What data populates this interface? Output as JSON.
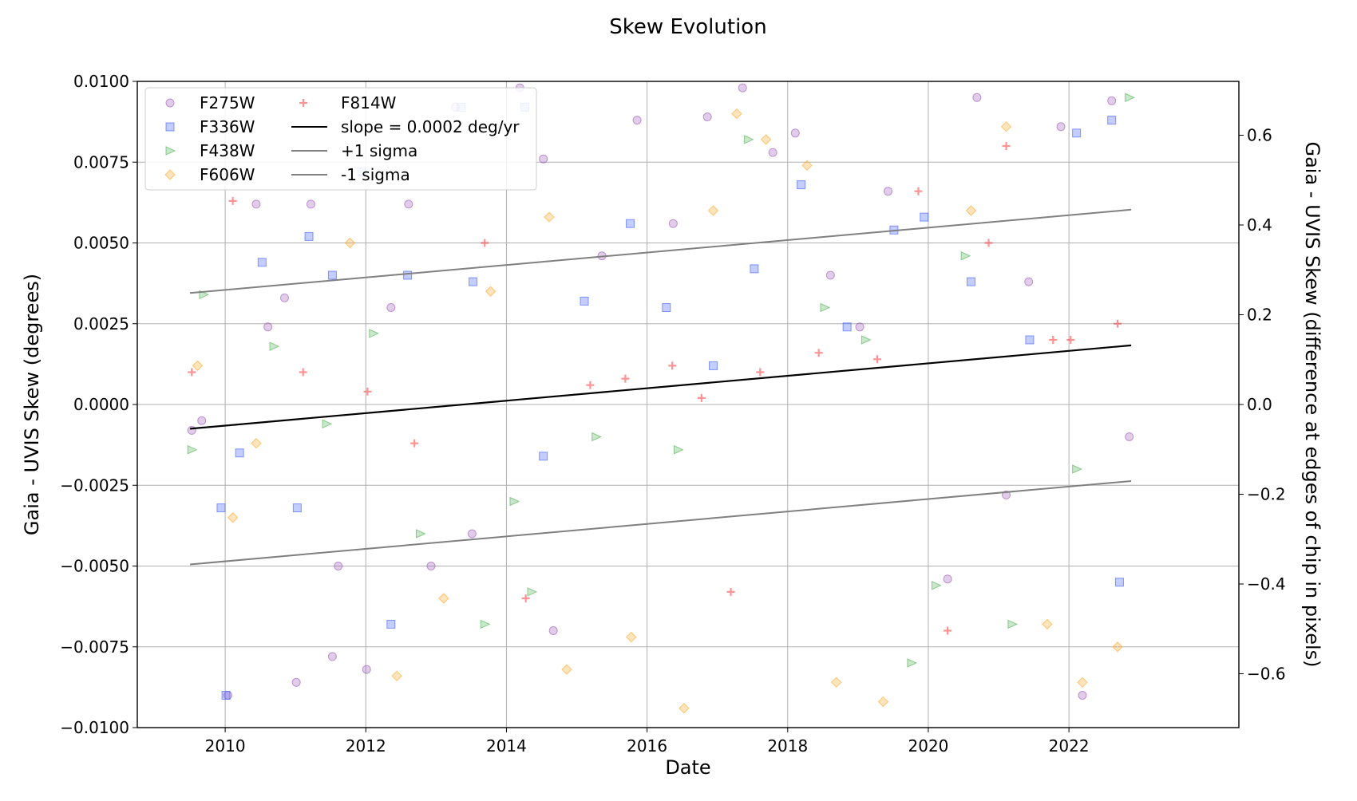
{
  "chart_data": {
    "type": "scatter",
    "title": "Skew Evolution",
    "xlabel": "Date",
    "ylabel": "Gaia - UVIS Skew (degrees)",
    "y2label": "Gaia - UVIS Skew (difference at edges of chip in pixels)",
    "xlim": [
      "2008-10-01",
      "2024-06-01"
    ],
    "ylim": [
      -0.01,
      0.01
    ],
    "y2lim": [
      -0.72,
      0.72
    ],
    "grid": true,
    "legend_location": "upper-left",
    "x_ticks": [
      "2010",
      "2012",
      "2014",
      "2016",
      "2018",
      "2020",
      "2022"
    ],
    "y_ticks": [
      "0.0100",
      "0.0075",
      "0.0050",
      "0.0025",
      "0.0000",
      "−0.0025",
      "−0.0050",
      "−0.0075",
      "−0.0100"
    ],
    "y2_ticks": [
      "0.6",
      "0.4",
      "0.2",
      "0.0",
      "−0.2",
      "−0.4",
      "−0.6"
    ],
    "series": [
      {
        "name": "F275W",
        "marker": "circle",
        "color": "#9b59b6",
        "points": [
          [
            "2009-07-10",
            -0.0008
          ],
          [
            "2009-09-01",
            -0.0005
          ],
          [
            "2010-01-15",
            -0.009
          ],
          [
            "2010-06-10",
            0.0062
          ],
          [
            "2010-08-10",
            0.0024
          ],
          [
            "2010-11-05",
            0.0033
          ],
          [
            "2011-01-05",
            -0.0086
          ],
          [
            "2011-03-20",
            0.0062
          ],
          [
            "2011-07-10",
            -0.0078
          ],
          [
            "2011-08-10",
            -0.005
          ],
          [
            "2012-01-05",
            -0.0082
          ],
          [
            "2012-05-10",
            0.003
          ],
          [
            "2012-08-10",
            0.0062
          ],
          [
            "2012-12-05",
            -0.005
          ],
          [
            "2013-04-10",
            0.0092
          ],
          [
            "2013-07-05",
            -0.004
          ],
          [
            "2014-03-10",
            0.0098
          ],
          [
            "2014-07-10",
            0.0076
          ],
          [
            "2014-09-01",
            -0.007
          ],
          [
            "2015-05-10",
            0.0046
          ],
          [
            "2015-11-10",
            0.0088
          ],
          [
            "2016-05-15",
            0.0056
          ],
          [
            "2016-11-10",
            0.0089
          ],
          [
            "2017-05-10",
            0.0098
          ],
          [
            "2017-10-15",
            0.0078
          ],
          [
            "2018-02-10",
            0.0084
          ],
          [
            "2018-08-10",
            0.004
          ],
          [
            "2019-01-10",
            0.0024
          ],
          [
            "2019-06-05",
            0.0066
          ],
          [
            "2020-04-10",
            -0.0054
          ],
          [
            "2020-09-10",
            0.0095
          ],
          [
            "2021-02-10",
            -0.0028
          ],
          [
            "2021-06-05",
            0.0038
          ],
          [
            "2021-11-20",
            0.0086
          ],
          [
            "2022-03-10",
            -0.009
          ],
          [
            "2022-08-10",
            0.0094
          ],
          [
            "2022-11-10",
            -0.001
          ]
        ]
      },
      {
        "name": "F336W",
        "marker": "square",
        "color": "#3b5bff",
        "points": [
          [
            "2009-12-10",
            -0.0032
          ],
          [
            "2010-01-05",
            -0.009
          ],
          [
            "2010-03-15",
            -0.0015
          ],
          [
            "2010-07-10",
            0.0044
          ],
          [
            "2011-01-10",
            -0.0032
          ],
          [
            "2011-03-10",
            0.0052
          ],
          [
            "2011-07-10",
            0.004
          ],
          [
            "2011-12-10",
            0.0072
          ],
          [
            "2012-05-10",
            -0.0068
          ],
          [
            "2012-08-05",
            0.004
          ],
          [
            "2013-05-10",
            0.0092
          ],
          [
            "2013-07-10",
            0.0038
          ],
          [
            "2014-04-05",
            0.0092
          ],
          [
            "2014-07-10",
            -0.0016
          ],
          [
            "2015-02-10",
            0.0032
          ],
          [
            "2015-10-05",
            0.0056
          ],
          [
            "2016-04-10",
            0.003
          ],
          [
            "2016-12-10",
            0.0012
          ],
          [
            "2017-07-10",
            0.0042
          ],
          [
            "2018-03-10",
            0.0068
          ],
          [
            "2018-11-05",
            0.0024
          ],
          [
            "2019-07-05",
            0.0054
          ],
          [
            "2019-12-10",
            0.0058
          ],
          [
            "2020-08-10",
            0.0038
          ],
          [
            "2021-06-10",
            0.002
          ],
          [
            "2022-02-10",
            0.0084
          ],
          [
            "2022-08-10",
            0.0088
          ],
          [
            "2022-09-20",
            -0.0055
          ]
        ]
      },
      {
        "name": "F438W",
        "marker": "triangle",
        "color": "#4caf50",
        "points": [
          [
            "2009-07-10",
            -0.0014
          ],
          [
            "2009-09-10",
            0.0034
          ],
          [
            "2010-09-10",
            0.0018
          ],
          [
            "2011-06-10",
            -0.0006
          ],
          [
            "2012-02-10",
            0.0022
          ],
          [
            "2012-10-10",
            -0.004
          ],
          [
            "2013-09-10",
            -0.0068
          ],
          [
            "2014-02-10",
            -0.003
          ],
          [
            "2014-05-10",
            -0.0058
          ],
          [
            "2015-04-10",
            -0.001
          ],
          [
            "2016-06-10",
            -0.0014
          ],
          [
            "2017-06-10",
            0.0082
          ],
          [
            "2018-07-10",
            0.003
          ],
          [
            "2019-02-10",
            0.002
          ],
          [
            "2019-10-05",
            -0.008
          ],
          [
            "2020-02-10",
            -0.0056
          ],
          [
            "2020-07-10",
            0.0046
          ],
          [
            "2021-03-10",
            -0.0068
          ],
          [
            "2022-02-10",
            -0.002
          ],
          [
            "2022-11-10",
            0.0095
          ]
        ]
      },
      {
        "name": "F606W",
        "marker": "diamond",
        "color": "#ffa726",
        "points": [
          [
            "2009-08-10",
            0.0012
          ],
          [
            "2010-02-10",
            -0.0035
          ],
          [
            "2010-06-10",
            -0.0012
          ],
          [
            "2011-10-10",
            0.005
          ],
          [
            "2012-06-10",
            -0.0084
          ],
          [
            "2013-02-10",
            -0.006
          ],
          [
            "2013-10-10",
            0.0035
          ],
          [
            "2014-08-10",
            0.0058
          ],
          [
            "2014-11-10",
            -0.0082
          ],
          [
            "2015-10-10",
            -0.0072
          ],
          [
            "2016-07-10",
            -0.0094
          ],
          [
            "2016-12-10",
            0.006
          ],
          [
            "2017-04-10",
            0.009
          ],
          [
            "2017-09-10",
            0.0082
          ],
          [
            "2018-04-10",
            0.0074
          ],
          [
            "2018-09-10",
            -0.0086
          ],
          [
            "2019-05-10",
            -0.0092
          ],
          [
            "2020-08-10",
            0.006
          ],
          [
            "2021-02-10",
            0.0086
          ],
          [
            "2021-09-10",
            -0.0068
          ],
          [
            "2022-03-10",
            -0.0086
          ],
          [
            "2022-09-10",
            -0.0075
          ]
        ]
      },
      {
        "name": "F814W",
        "marker": "plus",
        "color": "#ff3b3b",
        "points": [
          [
            "2009-07-10",
            0.001
          ],
          [
            "2010-02-10",
            0.0063
          ],
          [
            "2011-02-10",
            0.001
          ],
          [
            "2012-01-10",
            0.0004
          ],
          [
            "2012-09-10",
            -0.0012
          ],
          [
            "2013-09-10",
            0.005
          ],
          [
            "2014-04-10",
            -0.006
          ],
          [
            "2015-03-10",
            0.0006
          ],
          [
            "2015-09-10",
            0.0008
          ],
          [
            "2016-05-10",
            0.0012
          ],
          [
            "2016-10-10",
            0.0002
          ],
          [
            "2017-03-10",
            -0.0058
          ],
          [
            "2017-08-10",
            0.001
          ],
          [
            "2018-06-10",
            0.0016
          ],
          [
            "2019-04-10",
            0.0014
          ],
          [
            "2019-11-10",
            0.0066
          ],
          [
            "2020-04-10",
            -0.007
          ],
          [
            "2020-11-10",
            0.005
          ],
          [
            "2021-02-10",
            0.008
          ],
          [
            "2021-10-10",
            0.002
          ],
          [
            "2022-01-10",
            0.002
          ],
          [
            "2022-09-10",
            0.0025
          ]
        ]
      },
      {
        "name": "slope = 0.0002 deg/yr",
        "line": true,
        "color": "#000000",
        "points": [
          [
            "2009-07-01",
            -0.00075
          ],
          [
            "2022-11-20",
            0.00183
          ]
        ]
      },
      {
        "name": "+1 sigma",
        "line": true,
        "color": "#808080",
        "points": [
          [
            "2009-07-01",
            0.00345
          ],
          [
            "2022-11-20",
            0.00603
          ]
        ]
      },
      {
        "name": "-1 sigma",
        "line": true,
        "color": "#808080",
        "points": [
          [
            "2009-07-01",
            -0.00495
          ],
          [
            "2022-11-20",
            -0.00237
          ]
        ]
      }
    ]
  }
}
